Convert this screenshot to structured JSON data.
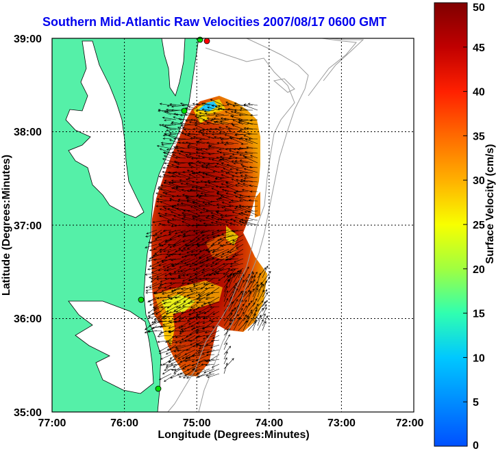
{
  "title": "Southern Mid-Atlantic Raw Velocities 2007/08/17 0600 GMT",
  "chart_data": {
    "type": "heatmap",
    "xlabel": "Longitude (Degrees:Minutes)",
    "ylabel": "Latitude (Degrees:Minutes)",
    "x_ticks": [
      "77:00",
      "76:00",
      "75:00",
      "74:00",
      "73:00",
      "72:00"
    ],
    "y_ticks": [
      "39:00",
      "38:00",
      "37:00",
      "36:00",
      "35:00"
    ],
    "xlim": [
      -77,
      -72
    ],
    "ylim": [
      35,
      39
    ],
    "grid": true,
    "colorbar": {
      "label": "Surface Velocity (cm/s)",
      "range": [
        0,
        50
      ],
      "ticks": [
        "0",
        "5",
        "10",
        "15",
        "20",
        "25",
        "30",
        "35",
        "40",
        "45",
        "50"
      ]
    },
    "colors": {
      "land": "#55f0a8",
      "water": "#ffffff",
      "bathymetry": "#9a9a9a",
      "arrows": "#000000",
      "stations_green": "#00dd00",
      "station_red": "#ff0000"
    }
  }
}
